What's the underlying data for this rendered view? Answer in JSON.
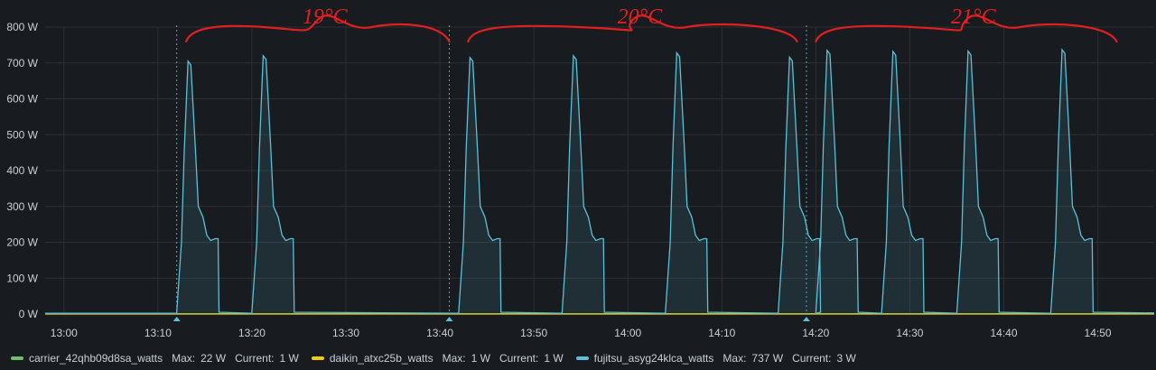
{
  "chart_data": {
    "type": "line",
    "title": "",
    "xlabel": "",
    "ylabel": "",
    "ylim": [
      0,
      800
    ],
    "y_ticks": [
      0,
      100,
      200,
      300,
      400,
      500,
      600,
      700,
      800
    ],
    "y_tick_labels": [
      "0 W",
      "100 W",
      "200 W",
      "300 W",
      "400 W",
      "500 W",
      "600 W",
      "700 W",
      "800 W"
    ],
    "x_range_minutes": [
      "12:58",
      "14:56"
    ],
    "x_ticks": [
      "13:00",
      "13:10",
      "13:20",
      "13:30",
      "13:40",
      "13:50",
      "14:00",
      "14:10",
      "14:20",
      "14:30",
      "14:40",
      "14:50"
    ],
    "grid": true,
    "legend_position": "bottom",
    "annotation_markers": [
      "13:12",
      "13:41",
      "14:19"
    ],
    "annotations": [
      {
        "text": "19°C",
        "from": "13:13",
        "to": "13:41"
      },
      {
        "text": "20°C",
        "from": "13:43",
        "to": "14:18"
      },
      {
        "text": "21°C",
        "from": "14:20",
        "to": "14:52"
      }
    ],
    "series": [
      {
        "name": "carrier_42qhb09d8sa_watts",
        "color": "#73bf69",
        "max": "22 W",
        "current": "1 W",
        "points": [
          [
            "12:58",
            1
          ],
          [
            "14:56",
            1
          ]
        ]
      },
      {
        "name": "daikin_atxc25b_watts",
        "color": "#f2cc0c",
        "max": "1 W",
        "current": "1 W",
        "points": [
          [
            "12:58",
            0
          ],
          [
            "14:56",
            0
          ]
        ]
      },
      {
        "name": "fujitsu_asyg24klca_watts",
        "color": "#5bc0d8",
        "max": "737 W",
        "current": "3 W",
        "cycle_shape_relative_minutes": [
          [
            0,
            5
          ],
          [
            0.5,
            200
          ],
          [
            0.8,
            450
          ],
          [
            1.2,
            700
          ],
          [
            1.5,
            690
          ],
          [
            2,
            450
          ],
          [
            2.3,
            300
          ],
          [
            2.8,
            270
          ],
          [
            3.2,
            220
          ],
          [
            3.6,
            205
          ],
          [
            4.1,
            210
          ],
          [
            4.4,
            210
          ],
          [
            4.5,
            5
          ]
        ],
        "cycle_peaks": [
          {
            "start": "13:12",
            "peak": 705
          },
          {
            "start": "13:20",
            "peak": 720
          },
          {
            "start": "13:42",
            "peak": 715
          },
          {
            "start": "13:53",
            "peak": 720
          },
          {
            "start": "14:04",
            "peak": 728
          },
          {
            "start": "14:16",
            "peak": 716
          },
          {
            "start": "14:20",
            "peak": 735
          },
          {
            "start": "14:27",
            "peak": 732
          },
          {
            "start": "14:35",
            "peak": 733
          },
          {
            "start": "14:45",
            "peak": 737
          }
        ]
      }
    ]
  }
}
